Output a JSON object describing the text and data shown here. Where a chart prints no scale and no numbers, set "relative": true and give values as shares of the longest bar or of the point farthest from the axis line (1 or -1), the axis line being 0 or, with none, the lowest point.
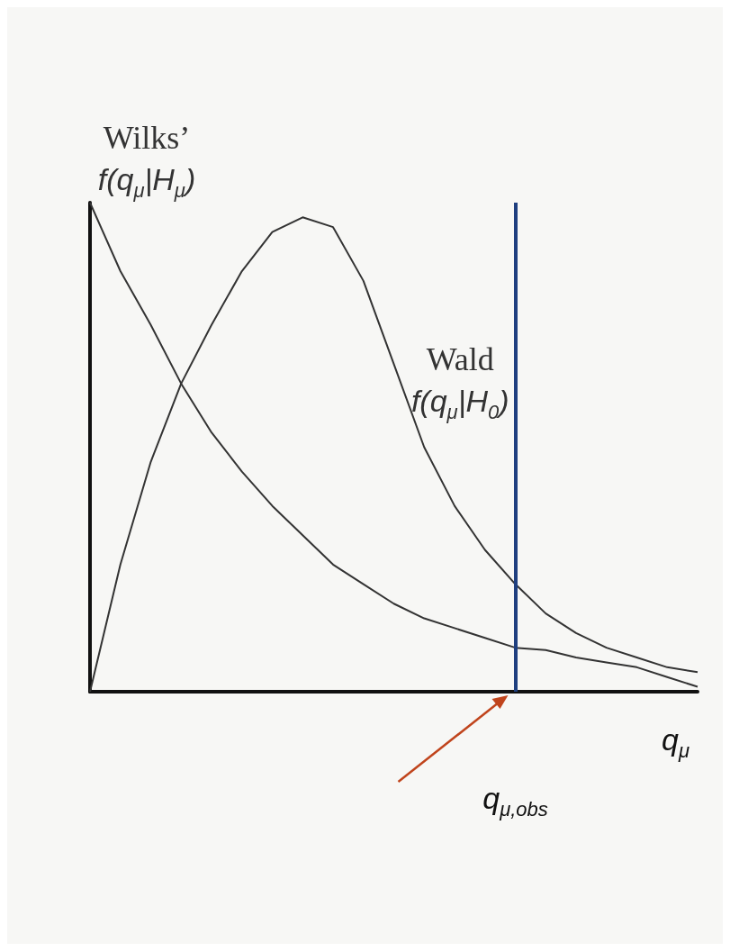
{
  "chart_data": {
    "type": "line",
    "relative": true,
    "xlabel": "q$_{μ}$",
    "marker": "none",
    "categories": [
      null,
      null,
      null,
      null,
      null,
      null,
      null,
      null,
      null,
      null,
      null,
      null,
      null,
      null,
      null,
      null,
      null,
      null,
      null,
      null,
      null
    ],
    "series": [
      {
        "name": "Wilks’\nf(q$_{μ}$|H$_{μ}$)",
        "color": "#333333",
        "values": [
          1,
          0.86,
          0.75,
          0.63,
          0.53,
          0.45,
          0.38,
          0.32,
          0.26,
          0.22,
          0.18,
          0.15,
          0.13,
          0.11,
          0.09,
          0.085,
          0.07,
          0.06,
          0.05,
          0.03,
          0.01
        ]
      },
      {
        "name": "Wald\nf(q$_{μ}$|H$_{0}$)",
        "color": "#333333",
        "values": [
          0,
          0.26,
          0.47,
          0.63,
          0.75,
          0.86,
          0.94,
          0.97,
          0.95,
          0.84,
          0.67,
          0.5,
          0.38,
          0.29,
          0.22,
          0.16,
          0.12,
          0.09,
          0.07,
          0.05,
          0.04
        ]
      }
    ],
    "annotations": [
      "q$_{μ,obs}$"
    ]
  }
}
